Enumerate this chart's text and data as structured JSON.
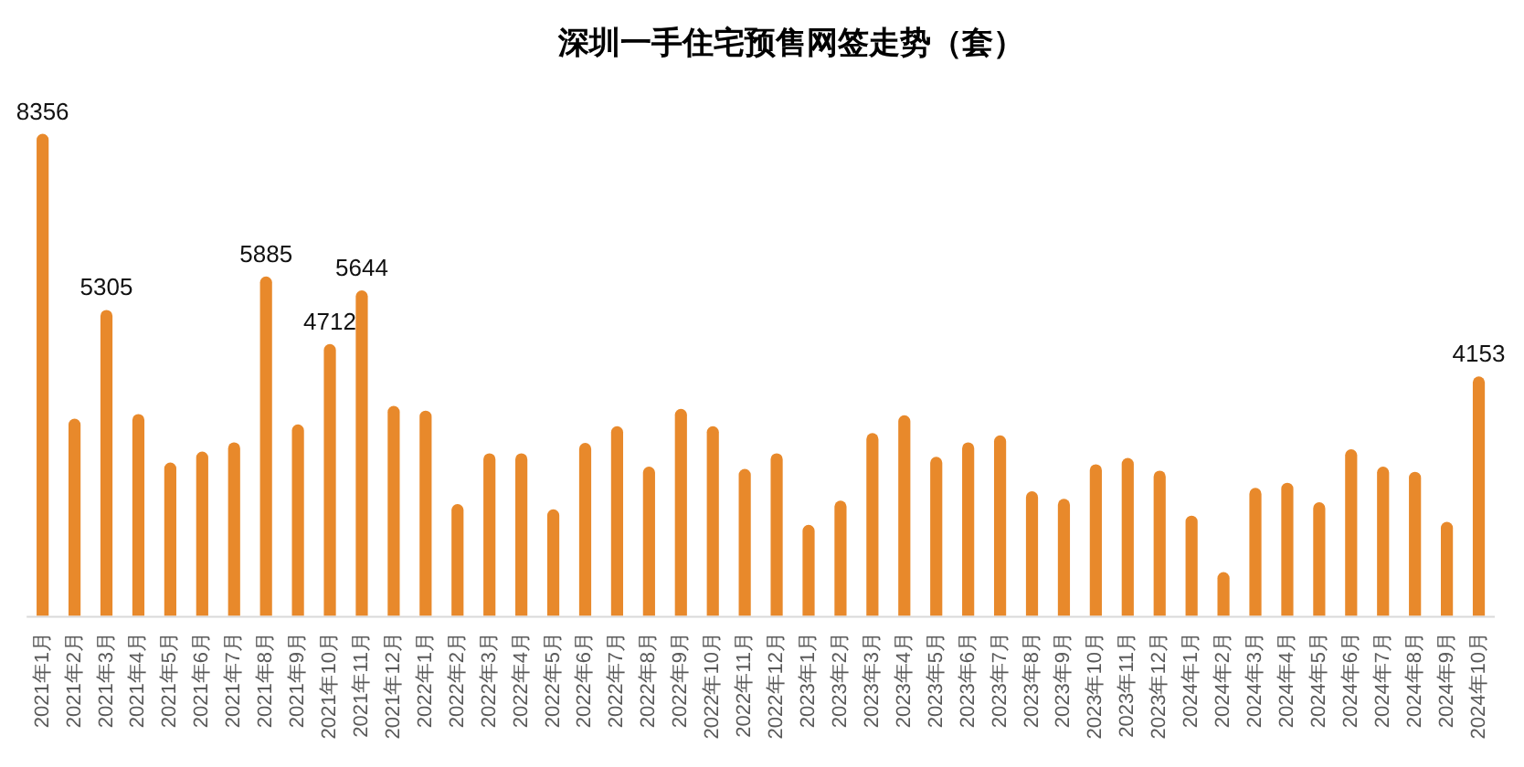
{
  "chart_data": {
    "type": "bar",
    "title": "深圳一手住宅预售网签走势（套）",
    "categories": [
      "2021年1月",
      "2021年2月",
      "2021年3月",
      "2021年4月",
      "2021年5月",
      "2021年6月",
      "2021年7月",
      "2021年8月",
      "2021年9月",
      "2021年10月",
      "2021年11月",
      "2021年12月",
      "2022年1月",
      "2022年2月",
      "2022年3月",
      "2022年4月",
      "2022年5月",
      "2022年6月",
      "2022年7月",
      "2022年8月",
      "2022年9月",
      "2022年10月",
      "2022年11月",
      "2022年12月",
      "2023年1月",
      "2023年2月",
      "2023年3月",
      "2023年4月",
      "2023年5月",
      "2023年6月",
      "2023年7月",
      "2023年8月",
      "2023年9月",
      "2023年10月",
      "2023年11月",
      "2023年12月",
      "2024年1月",
      "2024年2月",
      "2024年3月",
      "2024年4月",
      "2024年5月",
      "2024年6月",
      "2024年7月",
      "2024年8月",
      "2024年9月",
      "2024年10月"
    ],
    "values": [
      8356,
      3420,
      5305,
      3500,
      2660,
      2850,
      3010,
      5885,
      3320,
      4712,
      5644,
      3640,
      3560,
      1940,
      2820,
      2820,
      1850,
      3000,
      3290,
      2590,
      3590,
      3290,
      2550,
      2820,
      1580,
      2000,
      3170,
      3480,
      2760,
      3010,
      3130,
      2160,
      2030,
      2630,
      2740,
      2520,
      1740,
      760,
      2220,
      2310,
      1970,
      2890,
      2590,
      2500,
      1630,
      4153
    ],
    "value_labels": [
      "8356",
      null,
      "5305",
      null,
      null,
      null,
      null,
      "5885",
      null,
      "4712",
      "5644",
      null,
      null,
      null,
      null,
      null,
      null,
      null,
      null,
      null,
      null,
      null,
      null,
      null,
      null,
      null,
      null,
      null,
      null,
      null,
      null,
      null,
      null,
      null,
      null,
      null,
      null,
      null,
      null,
      null,
      null,
      null,
      null,
      null,
      null,
      "4153"
    ],
    "color": "#e8892b"
  }
}
